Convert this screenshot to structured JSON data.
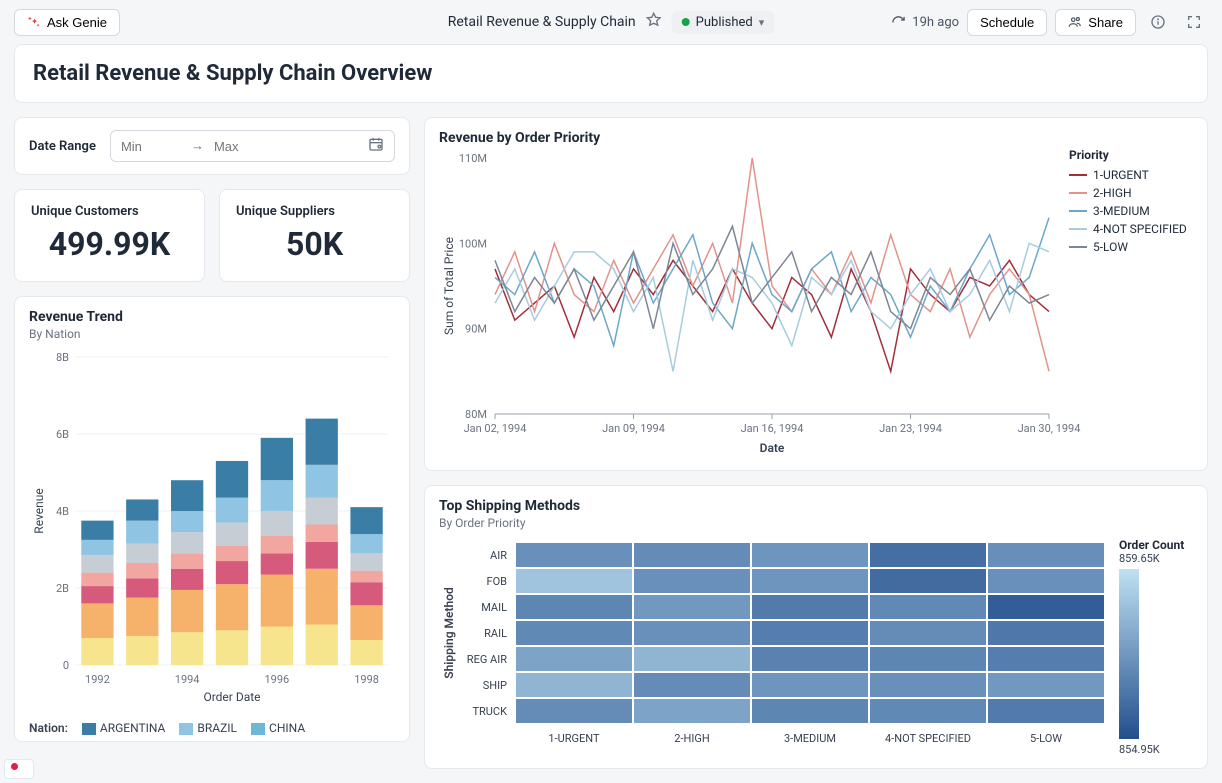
{
  "topbar": {
    "ask_label": "Ask Genie",
    "doc_title": "Retail Revenue & Supply Chain",
    "status_label": "Published",
    "refresh_label": "19h ago",
    "schedule_label": "Schedule",
    "share_label": "Share"
  },
  "header": {
    "title": "Retail Revenue & Supply Chain Overview"
  },
  "filters": {
    "date_label": "Date Range",
    "min_placeholder": "Min",
    "max_placeholder": "Max"
  },
  "kpi": {
    "customers_label": "Unique Customers",
    "customers_value": "499.99K",
    "suppliers_label": "Unique Suppliers",
    "suppliers_value": "50K"
  },
  "revenue_trend": {
    "title": "Revenue Trend",
    "subtitle": "By Nation",
    "type": "stacked-bar",
    "y_label": "Revenue",
    "x_label": "Order Date",
    "y_ticks": [
      0,
      "2B",
      "4B",
      "6B",
      "8B"
    ],
    "x_ticks": [
      "1992",
      "1994",
      "1996",
      "1998"
    ],
    "categories": [
      "1992",
      "1993",
      "1994",
      "1995",
      "1996",
      "1997",
      "1998"
    ],
    "segment_colors": [
      "#f6e58d",
      "#f6b26b",
      "#d65a7b",
      "#f1a6a0",
      "#c7cdd5",
      "#8fc5e2",
      "#3a7ea5"
    ],
    "values": [
      [
        0.7,
        0.9,
        0.45,
        0.35,
        0.45,
        0.4,
        0.5
      ],
      [
        0.75,
        1.0,
        0.5,
        0.4,
        0.5,
        0.6,
        0.55
      ],
      [
        0.85,
        1.1,
        0.55,
        0.4,
        0.55,
        0.55,
        0.8
      ],
      [
        0.9,
        1.2,
        0.6,
        0.4,
        0.6,
        0.65,
        0.95
      ],
      [
        1.0,
        1.35,
        0.55,
        0.45,
        0.65,
        0.8,
        1.1
      ],
      [
        1.05,
        1.45,
        0.7,
        0.45,
        0.7,
        0.85,
        1.2
      ],
      [
        0.65,
        0.9,
        0.6,
        0.3,
        0.45,
        0.5,
        0.7
      ]
    ],
    "ylim": [
      0,
      8
    ],
    "legend_label": "Nation:",
    "legend_items": [
      {
        "label": "ARGENTINA",
        "color": "#3a7ea5"
      },
      {
        "label": "BRAZIL",
        "color": "#8fc5e2"
      },
      {
        "label": "CHINA",
        "color": "#6fb7d6"
      }
    ],
    "background_color": "#ffffff",
    "grid_color": "#eef0f3",
    "title_fontsize": 14,
    "label_fontsize": 12
  },
  "revenue_priority": {
    "title": "Revenue by Order Priority",
    "type": "line",
    "y_label": "Sum of Total Price",
    "x_label": "Date",
    "y_ticks": [
      "80M",
      "90M",
      "100M",
      "110M"
    ],
    "x_ticks": [
      "Jan 02, 1994",
      "Jan 09, 1994",
      "Jan 16, 1994",
      "Jan 23, 1994",
      "Jan 30, 1994"
    ],
    "ylim": [
      80,
      110
    ],
    "legend_title": "Priority",
    "series": [
      {
        "name": "1-URGENT",
        "color": "#a12f3a",
        "values": [
          97,
          91,
          93,
          95,
          89,
          96,
          92,
          97,
          94,
          98,
          95,
          92,
          97,
          93,
          90,
          96,
          94,
          89,
          97,
          92,
          85,
          97,
          94,
          92,
          96,
          95,
          98,
          94,
          92
        ]
      },
      {
        "name": "2-HIGH",
        "color": "#e1938b",
        "values": [
          94,
          99,
          92,
          100,
          94,
          92,
          98,
          93,
          97,
          101,
          95,
          100,
          93,
          110,
          95,
          92,
          97,
          94,
          99,
          93,
          101,
          94,
          92,
          97,
          89,
          94,
          97,
          94,
          85
        ]
      },
      {
        "name": "3-MEDIUM",
        "color": "#6ca7c9",
        "values": [
          96,
          94,
          99,
          93,
          97,
          95,
          88,
          99,
          93,
          97,
          101,
          93,
          90,
          100,
          94,
          92,
          97,
          99,
          92,
          96,
          94,
          89,
          95,
          92,
          97,
          101,
          94,
          96,
          103
        ]
      },
      {
        "name": "4-NOT SPECIFIED",
        "color": "#a7ccdf",
        "values": [
          93,
          97,
          91,
          95,
          99,
          99,
          97,
          92,
          96,
          85,
          98,
          91,
          97,
          96,
          93,
          88,
          96,
          94,
          98,
          92,
          90,
          94,
          97,
          92,
          94,
          98,
          92,
          100,
          99
        ]
      },
      {
        "name": "5-LOW",
        "color": "#7d8694",
        "values": [
          98,
          92,
          96,
          93,
          97,
          91,
          95,
          99,
          90,
          100,
          94,
          97,
          102,
          93,
          96,
          99,
          92,
          96,
          94,
          99,
          92,
          90,
          96,
          94,
          97,
          91,
          95,
          93,
          94
        ]
      }
    ],
    "background_color": "#ffffff",
    "grid_color": "#eef0f3",
    "line_width": 1.5,
    "title_fontsize": 14,
    "label_fontsize": 12
  },
  "shipping": {
    "title": "Top Shipping Methods",
    "subtitle": "By Order Priority",
    "type": "heatmap",
    "y_label": "Shipping Method",
    "rows": [
      "AIR",
      "FOB",
      "MAIL",
      "RAIL",
      "REG AIR",
      "SHIP",
      "TRUCK"
    ],
    "cols": [
      "1-URGENT",
      "2-HIGH",
      "3-MEDIUM",
      "4-NOT SPECIFIED",
      "5-LOW"
    ],
    "cell_values": [
      [
        0.55,
        0.58,
        0.52,
        0.78,
        0.56
      ],
      [
        0.2,
        0.55,
        0.52,
        0.8,
        0.55
      ],
      [
        0.62,
        0.5,
        0.7,
        0.6,
        0.9
      ],
      [
        0.6,
        0.55,
        0.68,
        0.58,
        0.72
      ],
      [
        0.42,
        0.3,
        0.65,
        0.62,
        0.68
      ],
      [
        0.3,
        0.58,
        0.52,
        0.55,
        0.5
      ],
      [
        0.58,
        0.42,
        0.62,
        0.6,
        0.7
      ]
    ],
    "color_low": "#bfe1f2",
    "color_high": "#234e8c",
    "legend_label": "Order Count",
    "legend_max": "859.65K",
    "legend_min": "854.95K",
    "title_fontsize": 14,
    "label_fontsize": 12
  }
}
